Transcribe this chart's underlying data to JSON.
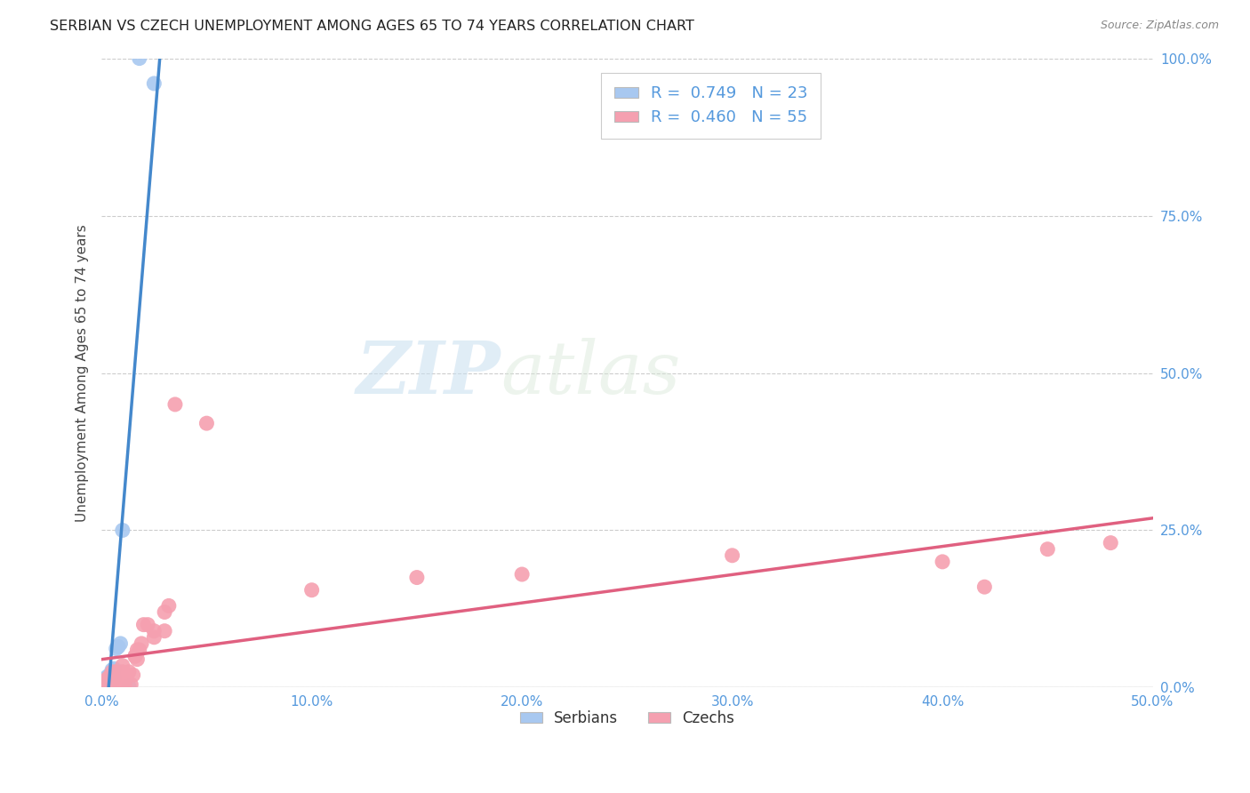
{
  "title": "SERBIAN VS CZECH UNEMPLOYMENT AMONG AGES 65 TO 74 YEARS CORRELATION CHART",
  "source": "Source: ZipAtlas.com",
  "ylabel_label": "Unemployment Among Ages 65 to 74 years",
  "serbian_color": "#a8c8f0",
  "czech_color": "#f5a0b0",
  "serbian_line_color": "#4488cc",
  "czech_line_color": "#e06080",
  "label_color": "#5599dd",
  "legend_label1": "Serbians",
  "legend_label2": "Czechs",
  "serbian_R": 0.749,
  "serbian_N": 23,
  "czech_R": 0.46,
  "czech_N": 55,
  "serbian_x": [
    0.001,
    0.001,
    0.001,
    0.002,
    0.002,
    0.002,
    0.003,
    0.003,
    0.003,
    0.003,
    0.004,
    0.004,
    0.005,
    0.005,
    0.006,
    0.006,
    0.007,
    0.008,
    0.009,
    0.01,
    0.013,
    0.018,
    0.025
  ],
  "serbian_y": [
    0.002,
    0.004,
    0.006,
    0.005,
    0.01,
    0.015,
    0.003,
    0.012,
    0.018,
    0.002,
    0.02,
    0.008,
    0.022,
    0.028,
    0.015,
    0.03,
    0.062,
    0.065,
    0.07,
    0.25,
    0.002,
    1.0,
    0.96
  ],
  "czech_x": [
    0.001,
    0.001,
    0.002,
    0.002,
    0.002,
    0.003,
    0.003,
    0.003,
    0.004,
    0.004,
    0.004,
    0.005,
    0.005,
    0.005,
    0.005,
    0.006,
    0.006,
    0.006,
    0.007,
    0.007,
    0.007,
    0.008,
    0.008,
    0.009,
    0.01,
    0.01,
    0.01,
    0.011,
    0.012,
    0.013,
    0.014,
    0.015,
    0.016,
    0.016,
    0.017,
    0.017,
    0.018,
    0.019,
    0.02,
    0.022,
    0.025,
    0.025,
    0.03,
    0.03,
    0.032,
    0.035,
    0.05,
    0.1,
    0.15,
    0.2,
    0.3,
    0.4,
    0.42,
    0.45,
    0.48
  ],
  "czech_y": [
    0.003,
    0.006,
    0.002,
    0.005,
    0.01,
    0.004,
    0.008,
    0.015,
    0.003,
    0.01,
    0.018,
    0.005,
    0.008,
    0.012,
    0.025,
    0.003,
    0.01,
    0.02,
    0.005,
    0.015,
    0.025,
    0.01,
    0.02,
    0.01,
    0.015,
    0.025,
    0.035,
    0.005,
    0.02,
    0.025,
    0.005,
    0.02,
    0.05,
    0.05,
    0.045,
    0.06,
    0.06,
    0.07,
    0.1,
    0.1,
    0.08,
    0.09,
    0.12,
    0.09,
    0.13,
    0.45,
    0.42,
    0.155,
    0.175,
    0.18,
    0.21,
    0.2,
    0.16,
    0.22,
    0.23
  ],
  "watermark_zip": "ZIP",
  "watermark_atlas": "atlas",
  "grid_color": "#cccccc",
  "bg_color": "#ffffff",
  "xlim": [
    0,
    0.5
  ],
  "ylim": [
    0,
    1.0
  ],
  "xticks": [
    0.0,
    0.1,
    0.2,
    0.3,
    0.4,
    0.5
  ],
  "yticks": [
    0.0,
    0.25,
    0.5,
    0.75,
    1.0
  ]
}
